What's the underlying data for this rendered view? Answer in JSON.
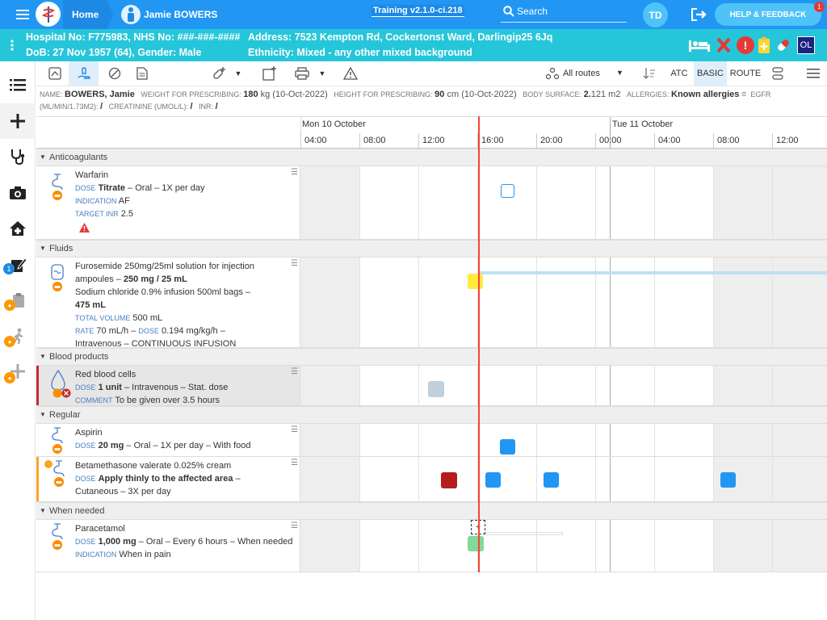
{
  "topbar": {
    "home_label": "Home",
    "patient_name": "Jamie BOWERS",
    "version_label": "Training v2.1.0-ci.218",
    "search_label": "Search",
    "user_initials": "TD",
    "help_label": "HELP & FEEDBACK",
    "help_badge": "1"
  },
  "banner": {
    "line1": "Hospital No: F775983, NHS No: ###-###-####",
    "line2": "DoB: 27 Nov 1957 (64), Gender: Male",
    "address": "Address: 7523 Kempton Rd, Cockertonst Ward, Darlingip25 6Jq",
    "ethnicity": "Ethnicity: Mixed - any other mixed background",
    "ol_label": "OL"
  },
  "leftnav": {
    "badge_count": "1"
  },
  "toolbar": {
    "routes_label": "All routes",
    "atc_label": "ATC",
    "basic_label": "BASIC",
    "route_label": "ROUTE"
  },
  "info": {
    "name_label": "NAME:",
    "name_value": "BOWERS, Jamie",
    "weight_label": "WEIGHT FOR PRESCRIBING:",
    "weight_value": "180",
    "weight_unit": " kg (10-Oct-2022)",
    "height_label": "HEIGHT FOR PRESCRIBING:",
    "height_value": "90",
    "height_unit": " cm (10-Oct-2022)",
    "bsa_label": "BODY SURFACE:",
    "bsa_value": "2.",
    "bsa_rest": "121 m2",
    "allergies_label": "ALLERGIES:",
    "allergies_value": "Known allergies",
    "egfr_label": "EGFR",
    "egfr_unit": "(ML/MIN/1.73M2):",
    "egfr_value": "/",
    "creat_label": "CREATININE (UMOL/L):",
    "creat_value": "/",
    "inr_label": "INR:",
    "inr_value": "/"
  },
  "timeline": {
    "day1": "Mon 10 October",
    "day2": "Tue 11 October",
    "hours": [
      "04:00",
      "08:00",
      "12:00",
      "16:00",
      "20:00",
      "00:00",
      "04:00",
      "08:00",
      "12:00"
    ]
  },
  "sections": {
    "anticoagulants": "Anticoagulants",
    "fluids": "Fluids",
    "blood": "Blood products",
    "regular": "Regular",
    "when_needed": "When needed"
  },
  "meds": {
    "warfarin": {
      "name": "Warfarin",
      "dose_label": "DOSE",
      "dose_value": "Titrate",
      "dose_rest": " – Oral – 1X per day",
      "ind_label": "INDICATION",
      "ind_value": " AF",
      "inr_label": "TARGET INR",
      "inr_value": " 2.5"
    },
    "fluid": {
      "line1": "Furosemide 250mg/25ml solution for injection ampoules –",
      "line1b": " 250 mg / 25 mL",
      "line2": "Sodium chloride 0.9% infusion 500ml bags –",
      "line2b": "475 mL",
      "vol_label": "TOTAL VOLUME",
      "vol_value": " 500 mL",
      "rate_label": "RATE",
      "rate_value": " 70 mL/h – ",
      "dose_label": "DOSE",
      "dose_value": " 0.194 mg/kg/h –",
      "route": "Intravenous – CONTINUOUS INFUSION"
    },
    "rbc": {
      "name": "Red blood cells",
      "dose_label": "DOSE",
      "dose_value": "1 unit",
      "dose_rest": " – Intravenous – Stat. dose",
      "comment_label": "COMMENT",
      "comment_value": " To be given over 3.5 hours"
    },
    "aspirin": {
      "name": "Aspirin",
      "dose_label": "DOSE",
      "dose_value": "20 mg",
      "dose_rest": " – Oral – 1X per day – With food"
    },
    "betamethasone": {
      "name": "Betamethasone valerate 0.025% cream",
      "dose_label": "DOSE",
      "dose_value": "Apply thinly to the affected area",
      "dose_rest": " –",
      "route": "Cutaneous – 3X per day"
    },
    "paracetamol": {
      "name": "Paracetamol",
      "dose_label": "DOSE",
      "dose_value": "1,000 mg",
      "dose_rest": " – Oral – Every 6 hours – When needed",
      "ind_label": "INDICATION",
      "ind_value": " When in pain"
    }
  },
  "colors": {
    "topbar": "#2196f3",
    "banner": "#26c6da",
    "now_line": "#f44336",
    "dose_blue": "#2196f3",
    "dose_red": "#b71c1c",
    "dose_yellow": "#ffeb3b",
    "dose_green": "#81d99a",
    "dose_grey": "#c0cfdc"
  }
}
